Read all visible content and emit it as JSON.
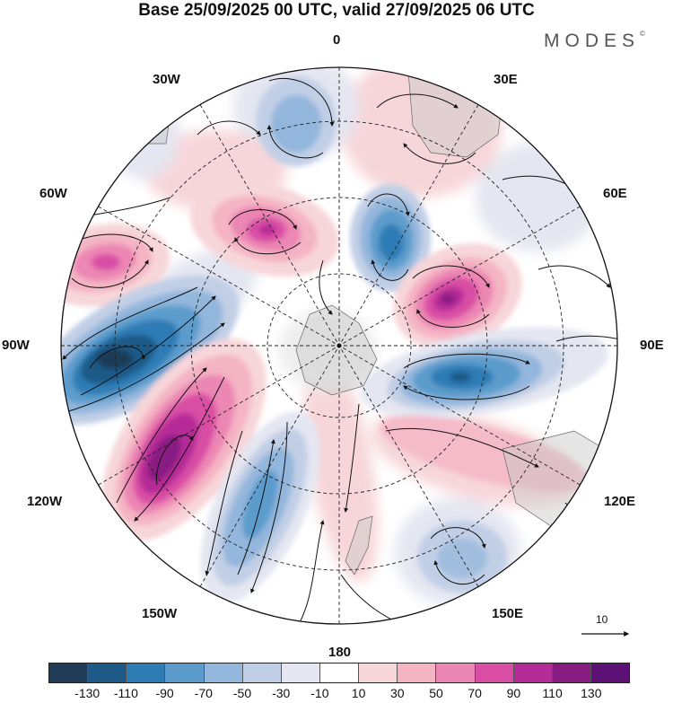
{
  "title": "Base 25/09/2025 00 UTC, valid 27/09/2025 06 UTC",
  "brand": {
    "name": "MODES",
    "mark": "©"
  },
  "longitude_labels": {
    "n0": "0",
    "n30w": "30W",
    "n30e": "30E",
    "n60w": "60W",
    "n60e": "60E",
    "n90w": "90W",
    "n90e": "90E",
    "n120w": "120W",
    "n120e": "120E",
    "n150w": "150W",
    "n150e": "150E",
    "n180": "180"
  },
  "vector_scale_label": "10",
  "colorbar": {
    "colors": [
      "#1f3b57",
      "#1e5a88",
      "#2f7cb5",
      "#5b9ccc",
      "#93b6dc",
      "#c1cfe6",
      "#e4e6f1",
      "#ffffff",
      "#f7d6d9",
      "#f4b4c4",
      "#ec86b3",
      "#d94ea4",
      "#b52c97",
      "#881b82",
      "#5b1274"
    ],
    "tick_labels": [
      "-130",
      "-110",
      "-90",
      "-70",
      "-50",
      "-30",
      "-10",
      "10",
      "30",
      "50",
      "70",
      "90",
      "110",
      "130"
    ]
  },
  "anomaly_features": [
    {
      "sign": "positive",
      "intensity": 3,
      "near": "60W"
    },
    {
      "sign": "positive",
      "intensity": 4,
      "near": "45W"
    },
    {
      "sign": "negative",
      "intensity": 5,
      "near": "90W"
    },
    {
      "sign": "positive",
      "intensity": 5,
      "near": "120W"
    },
    {
      "sign": "negative",
      "intensity": 3,
      "near": "150W"
    },
    {
      "sign": "negative",
      "intensity": 2,
      "near": "0"
    },
    {
      "sign": "negative",
      "intensity": 4,
      "near": "20E"
    },
    {
      "sign": "positive",
      "intensity": 5,
      "near": "60E"
    },
    {
      "sign": "negative",
      "intensity": 4,
      "near": "95E"
    },
    {
      "sign": "positive",
      "intensity": 2,
      "near": "120E"
    },
    {
      "sign": "negative",
      "intensity": 2,
      "near": "150E"
    },
    {
      "sign": "positive",
      "intensity": 2,
      "near": "30E"
    }
  ]
}
